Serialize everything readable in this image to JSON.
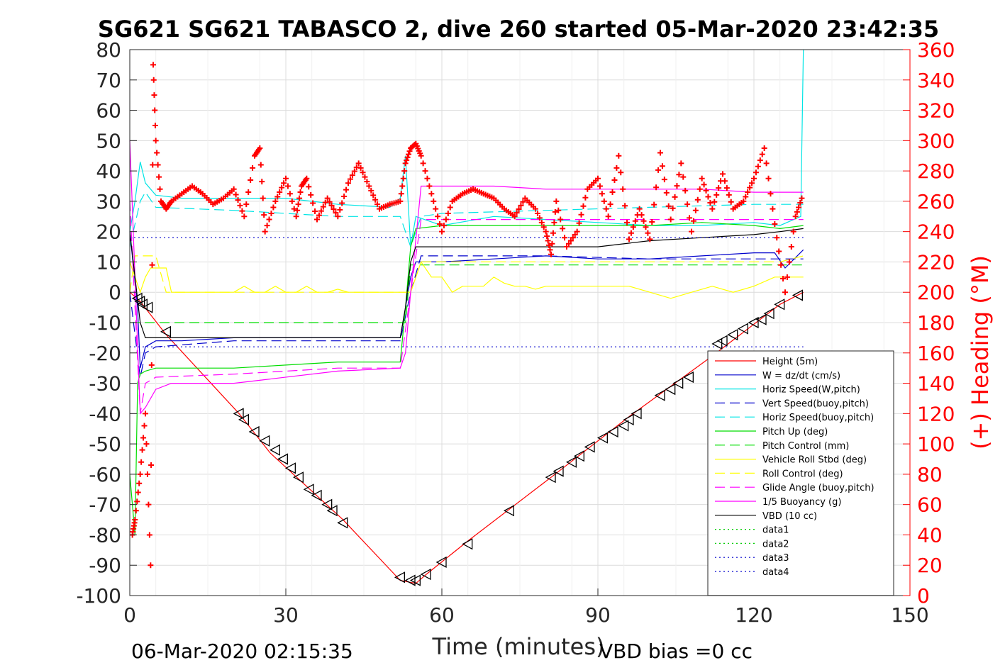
{
  "chart_data": {
    "type": "line",
    "title": "SG621 SG621 TABASCO 2, dive 260 started 05-Mar-2020 23:42:35",
    "xlabel": "Time (minutes)",
    "ylabel_right": "(+) Heading (°M)",
    "xlim": [
      0,
      150
    ],
    "ylim_left": [
      -100,
      80
    ],
    "ylim_right": [
      0,
      360
    ],
    "xticks": [
      "0",
      "30",
      "60",
      "90",
      "120",
      "150"
    ],
    "yticks_left": [
      "80",
      "70",
      "60",
      "50",
      "40",
      "30",
      "20",
      "10",
      "0",
      "-10",
      "-20",
      "-30",
      "-40",
      "-50",
      "-60",
      "-70",
      "-80",
      "-90",
      "-100"
    ],
    "yticks_right": [
      "360",
      "340",
      "320",
      "300",
      "280",
      "260",
      "240",
      "220",
      "200",
      "180",
      "160",
      "140",
      "120",
      "100",
      "80",
      "60",
      "40",
      "20",
      "0"
    ],
    "grid": true,
    "legend_position": "lower-right",
    "footer_left": "06-Mar-2020 02:15:35",
    "footer_right": "VBD bias =0 cc",
    "colors": {
      "height": "#ff0000",
      "w": "#0000cc",
      "hspeed_w": "#00e5e5",
      "vspeed_buoy": "#0000cc",
      "hspeed_buoy": "#00e5e5",
      "pitch": "#00dd00",
      "pitch_ctrl": "#00dd00",
      "roll": "#ffff00",
      "roll_ctrl": "#ffff00",
      "glide": "#ff00ff",
      "buoy": "#ff00ff",
      "vbd": "#000000",
      "heading": "#ff0000"
    },
    "series": [
      {
        "name": "Height (5m)",
        "key": "height",
        "style": "solid",
        "x": [
          0,
          2,
          7,
          21,
          27,
          41,
          52,
          55,
          57,
          65,
          81,
          96,
          112,
          125,
          129.5
        ],
        "y": [
          0,
          -3,
          -14,
          -40,
          -53,
          -75,
          -95,
          -96,
          -93,
          -82,
          -61,
          -41,
          -21,
          -4,
          0
        ]
      },
      {
        "name": "W = dz/dt (cm/s)",
        "key": "w",
        "style": "solid",
        "x": [
          0,
          1.5,
          2,
          3,
          5,
          10,
          20,
          30,
          40,
          50,
          52,
          53,
          54,
          55,
          60,
          70,
          80,
          90,
          100,
          110,
          120,
          124,
          126,
          129.5
        ],
        "y": [
          20,
          -5,
          -25,
          -18,
          -16,
          -16,
          -15,
          -15,
          -15,
          -15,
          -15,
          -5,
          5,
          10,
          10,
          11,
          12,
          11,
          11,
          12,
          13,
          13,
          8,
          14
        ]
      },
      {
        "name": "Horiz Speed(W,pitch)",
        "key": "hspeed_w",
        "style": "solid",
        "x": [
          0,
          1,
          2,
          3,
          5,
          10,
          20,
          30,
          40,
          50,
          52,
          53,
          54,
          55,
          60,
          70,
          80,
          90,
          100,
          110,
          120,
          125,
          129,
          129.5
        ],
        "y": [
          20,
          30,
          43,
          36,
          32,
          31,
          31,
          31,
          29,
          28,
          31,
          45,
          15,
          25,
          22,
          25,
          24,
          23,
          22,
          22,
          23,
          22,
          25,
          80
        ]
      },
      {
        "name": "Vert Speed(buoy,pitch)",
        "key": "vspeed_buoy",
        "style": "dash",
        "x": [
          0,
          2,
          3,
          5,
          20,
          40,
          52,
          54,
          56,
          60,
          80,
          100,
          120,
          129.5
        ],
        "y": [
          0,
          -28,
          -20,
          -18,
          -16,
          -16,
          -16,
          0,
          12,
          12,
          12,
          11,
          11,
          11
        ]
      },
      {
        "name": "Horiz Speed(buoy,pitch)",
        "key": "hspeed_buoy",
        "style": "dash",
        "x": [
          0,
          2,
          3,
          5,
          20,
          40,
          52,
          54,
          56,
          60,
          80,
          100,
          120,
          129.5
        ],
        "y": [
          15,
          30,
          33,
          28,
          27,
          25,
          25,
          15,
          25,
          26,
          27,
          28,
          29,
          29
        ]
      },
      {
        "name": "Pitch Up (deg)",
        "key": "pitch",
        "style": "solid",
        "x": [
          0,
          1,
          1.5,
          2,
          3,
          5,
          10,
          20,
          30,
          40,
          50,
          52,
          53,
          54,
          55,
          60,
          70,
          80,
          90,
          100,
          110,
          120,
          125,
          129.5
        ],
        "y": [
          -60,
          -80,
          -30,
          -27,
          -26,
          -25,
          -25,
          -25,
          -24,
          -23,
          -23,
          -23,
          -5,
          15,
          21,
          22,
          22,
          22,
          22,
          22,
          23,
          22,
          21,
          22
        ]
      },
      {
        "name": "Pitch Control (mm)",
        "key": "pitch_ctrl",
        "style": "dash",
        "x": [
          0,
          2,
          3,
          52,
          53,
          54,
          55,
          129.5
        ],
        "y": [
          -10,
          -10,
          -10,
          -10,
          -10,
          9,
          9,
          9
        ]
      },
      {
        "name": "Vehicle Roll Stbd (deg)",
        "key": "roll",
        "style": "solid",
        "x": [
          0,
          2,
          3,
          4,
          7,
          8,
          20,
          22,
          24,
          26,
          28,
          30,
          32,
          34,
          36,
          38,
          40,
          42,
          44,
          46,
          48,
          50,
          52,
          54,
          56,
          58,
          60,
          62,
          64,
          66,
          68,
          70,
          72,
          74,
          76,
          78,
          80,
          84,
          88,
          92,
          96,
          100,
          104,
          108,
          112,
          116,
          120,
          124,
          126,
          129.5
        ],
        "y": [
          10,
          0,
          5,
          8,
          8,
          0,
          0,
          2,
          0,
          0,
          2,
          0,
          0,
          2,
          0,
          0,
          1,
          0,
          0,
          0,
          0,
          0,
          0,
          0,
          10,
          5,
          5,
          0,
          2,
          2,
          2,
          5,
          3,
          2,
          2,
          1,
          2,
          2,
          2,
          2,
          2,
          0,
          -2,
          0,
          2,
          0,
          2,
          5,
          5,
          5
        ]
      },
      {
        "name": "Roll Control (deg)",
        "key": "roll_ctrl",
        "style": "dash",
        "x": [
          0,
          1,
          2,
          3,
          5,
          7,
          20,
          25,
          30,
          35,
          40,
          45,
          50,
          52,
          54,
          56,
          60,
          65,
          70,
          75,
          80,
          85,
          90,
          95,
          100,
          105,
          110,
          115,
          120,
          125,
          129.5
        ],
        "y": [
          0,
          12,
          12,
          12,
          12,
          0,
          0,
          0,
          0,
          0,
          0,
          0,
          0,
          0,
          0,
          10,
          10,
          10,
          10,
          10,
          10,
          10,
          10,
          10,
          10,
          10,
          10,
          10,
          10,
          10,
          12
        ]
      },
      {
        "name": "Glide Angle (buoy,pitch)",
        "key": "glide",
        "style": "dash",
        "x": [
          0,
          2,
          3,
          5,
          20,
          40,
          52,
          54,
          56,
          60,
          80,
          100,
          120,
          129.5
        ],
        "y": [
          30,
          -40,
          -30,
          -28,
          -27,
          -25,
          -25,
          0,
          24,
          24,
          24,
          24,
          24,
          24
        ]
      },
      {
        "name": "1/5 Buoyancy (g)",
        "key": "buoy",
        "style": "solid",
        "x": [
          0,
          2,
          3,
          5,
          8,
          20,
          40,
          52,
          53,
          54,
          56,
          60,
          70,
          80,
          90,
          100,
          110,
          120,
          125,
          129.5
        ],
        "y": [
          50,
          -40,
          -38,
          -32,
          -30,
          -30,
          -26,
          -25,
          -20,
          0,
          35,
          35,
          35,
          34,
          34,
          34,
          34,
          33,
          33,
          33
        ]
      },
      {
        "name": "VBD (10 cc)",
        "key": "vbd",
        "style": "solid",
        "x": [
          0,
          2,
          3,
          5,
          52,
          53,
          54,
          55,
          60,
          80,
          90,
          100,
          110,
          120,
          125,
          129.5
        ],
        "y": [
          20,
          -10,
          -15,
          -15,
          -15,
          -5,
          10,
          15,
          15,
          15,
          15,
          17,
          18,
          19,
          20,
          21
        ]
      },
      {
        "name": "data1",
        "key": "data1",
        "style": "dot",
        "x": [],
        "y": []
      },
      {
        "name": "data2",
        "key": "data2",
        "style": "dot",
        "x": [],
        "y": []
      },
      {
        "name": "data3",
        "key": "data3",
        "style": "dot",
        "x": [
          0,
          129.5
        ],
        "y": [
          18,
          18
        ]
      },
      {
        "name": "data4",
        "key": "data4",
        "style": "dot",
        "x": [
          0,
          129.5
        ],
        "y": [
          -18,
          -18
        ]
      }
    ],
    "heading_series": {
      "axis": "right",
      "x": [
        0.5,
        1,
        2,
        3,
        4,
        4.5,
        5,
        6,
        7,
        8,
        10,
        12,
        14,
        16,
        18,
        20,
        22,
        24,
        25,
        26,
        28,
        30,
        32,
        33,
        34,
        36,
        38,
        40,
        42,
        44,
        46,
        48,
        50,
        52,
        53,
        54,
        55,
        56,
        58,
        60,
        62,
        64,
        66,
        68,
        70,
        72,
        74,
        76,
        78,
        80,
        81,
        82,
        84,
        86,
        88,
        90,
        92,
        94,
        96,
        98,
        100,
        102,
        104,
        106,
        108,
        110,
        112,
        114,
        116,
        118,
        120,
        122,
        124,
        126,
        128,
        129.5
      ],
      "y": [
        40,
        50,
        80,
        120,
        20,
        350,
        300,
        260,
        255,
        260,
        265,
        270,
        265,
        258,
        262,
        268,
        250,
        290,
        295,
        240,
        260,
        275,
        250,
        270,
        275,
        248,
        262,
        250,
        272,
        285,
        270,
        255,
        258,
        260,
        285,
        295,
        298,
        290,
        265,
        240,
        260,
        265,
        268,
        265,
        262,
        255,
        250,
        262,
        255,
        240,
        225,
        260,
        230,
        240,
        268,
        275,
        250,
        290,
        235,
        255,
        235,
        292,
        248,
        285,
        240,
        275,
        255,
        278,
        255,
        260,
        275,
        295,
        245,
        200,
        250,
        265
      ]
    },
    "marker_series": {
      "marker": "triangle",
      "x": [
        1.5,
        2,
        2.5,
        3.5,
        7,
        21,
        22,
        24,
        26,
        28,
        29.5,
        31,
        32.5,
        34.5,
        36,
        38,
        39,
        41,
        52,
        54,
        55,
        57,
        60,
        65,
        73,
        81,
        82.5,
        85,
        86.5,
        88.5,
        91,
        93,
        95,
        96,
        97.5,
        102,
        104,
        105.5,
        107.5,
        113,
        114,
        116,
        118,
        120,
        121.5,
        123,
        125,
        128.5
      ],
      "y": [
        -2,
        -3,
        -4,
        -5,
        -13,
        -40,
        -42,
        -46,
        -49,
        -52,
        -55,
        -58,
        -61,
        -65,
        -67,
        -70,
        -72,
        -76,
        -94,
        -95,
        -95,
        -93,
        -89,
        -83,
        -72,
        -61,
        -59,
        -56,
        -54,
        -51,
        -48,
        -46,
        -44,
        -42,
        -40,
        -34,
        -32,
        -30,
        -28,
        -17,
        -16,
        -14,
        -12,
        -10,
        -9,
        -7,
        -4,
        -1
      ]
    }
  }
}
